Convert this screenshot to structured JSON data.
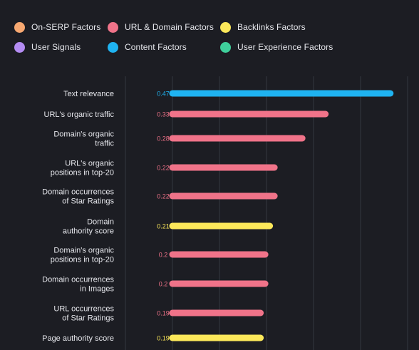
{
  "legend": {
    "items": [
      {
        "label": "On-SERP Factors",
        "color": "#f7a871"
      },
      {
        "label": "URL & Domain Factors",
        "color": "#f07389"
      },
      {
        "label": "Backlinks Factors",
        "color": "#fce85a"
      },
      {
        "label": "User Signals",
        "color": "#b48cf2"
      },
      {
        "label": "Content Factors",
        "color": "#1fb3f1"
      },
      {
        "label": "User Experience Factors",
        "color": "#3fcf9b"
      }
    ]
  },
  "chart_data": {
    "type": "bar",
    "orientation": "horizontal",
    "title": "",
    "xlabel": "",
    "ylabel": "",
    "xlim": [
      0,
      0.5
    ],
    "grid": true,
    "legend_position": "top",
    "categories": [
      [
        "Text relevance"
      ],
      [
        "URL's organic traffic"
      ],
      [
        "Domain's organic",
        "traffic"
      ],
      [
        "URL's organic",
        "positions in top-20"
      ],
      [
        "Domain occurrences",
        "of Star Ratings"
      ],
      [
        "Domain",
        "authority score"
      ],
      [
        "Domain's organic",
        "positions in top-20"
      ],
      [
        "Domain occurrences",
        "in Images"
      ],
      [
        "URL occurrences",
        "of Star Ratings"
      ],
      [
        "Page authority score"
      ]
    ],
    "values": [
      0.47,
      0.33,
      0.28,
      0.22,
      0.22,
      0.21,
      0.2,
      0.2,
      0.19,
      0.19
    ],
    "value_labels": [
      "0.47",
      "0.33",
      "0.28",
      "0.22",
      "0.22",
      "0.21",
      "0.2",
      "0.2",
      "0.19",
      "0.19"
    ],
    "factor_group": [
      "Content Factors",
      "URL & Domain Factors",
      "URL & Domain Factors",
      "URL & Domain Factors",
      "URL & Domain Factors",
      "Backlinks Factors",
      "URL & Domain Factors",
      "URL & Domain Factors",
      "URL & Domain Factors",
      "Backlinks Factors"
    ]
  }
}
